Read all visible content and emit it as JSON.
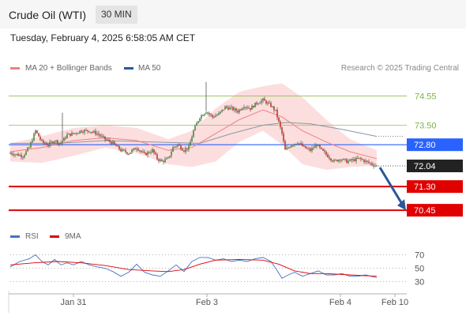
{
  "header": {
    "instrument": "Crude Oil (WTI)",
    "timeframe": "30 MIN"
  },
  "timestamp": "Tuesday, February 4, 2025 6:58:05 AM CET",
  "legend": {
    "ma20": {
      "label": "MA 20 + Bollinger Bands",
      "color": "#f08080"
    },
    "ma50": {
      "label": "MA 50",
      "color": "#2b5797"
    },
    "rsi": {
      "label": "RSI",
      "color": "#4472c4"
    },
    "ma9": {
      "label": "9MA",
      "color": "#e00000"
    }
  },
  "credit": "Research © 2025 Trading Central",
  "chart_data": {
    "type": "candlestick",
    "x_ticks": [
      "Jan 31",
      "Feb 3",
      "Feb 4",
      "Feb 10"
    ],
    "price_ylim": [
      70.0,
      75.3
    ],
    "levels": [
      {
        "value": 74.55,
        "label": "74.55",
        "color": "#8bc34a",
        "style": "line"
      },
      {
        "value": 73.5,
        "label": "73.50",
        "color": "#8bc34a",
        "style": "line"
      },
      {
        "value": 72.8,
        "label": "72.80",
        "color": "#2962ff",
        "style": "line"
      },
      {
        "value": 71.3,
        "label": "71.30",
        "color": "#e00000",
        "style": "line"
      },
      {
        "value": 70.45,
        "label": "70.45",
        "color": "#e00000",
        "style": "line"
      }
    ],
    "current_price": {
      "value": 72.04,
      "label": "72.04",
      "color": "#222222"
    },
    "projection": {
      "from": 72.04,
      "to": 70.45,
      "color": "#2b5797"
    },
    "anchors": [
      [
        0,
        72.5
      ],
      [
        4,
        72.45
      ],
      [
        8,
        72.4
      ],
      [
        12,
        72.7
      ],
      [
        16,
        73.3
      ],
      [
        20,
        72.9
      ],
      [
        24,
        72.8
      ],
      [
        28,
        72.95
      ],
      [
        32,
        72.85
      ],
      [
        36,
        73.15
      ],
      [
        40,
        73.2
      ],
      [
        45,
        73.3
      ],
      [
        50,
        73.3
      ],
      [
        55,
        73.2
      ],
      [
        60,
        73.0
      ],
      [
        65,
        72.85
      ],
      [
        70,
        72.6
      ],
      [
        75,
        72.5
      ],
      [
        80,
        72.7
      ],
      [
        85,
        72.45
      ],
      [
        90,
        72.6
      ],
      [
        93,
        72.3
      ],
      [
        96,
        72.2
      ],
      [
        100,
        72.3
      ],
      [
        103,
        72.7
      ],
      [
        106,
        72.8
      ],
      [
        110,
        72.6
      ],
      [
        113,
        72.7
      ],
      [
        116,
        73.3
      ],
      [
        120,
        73.8
      ],
      [
        124,
        74.0
      ],
      [
        128,
        73.8
      ],
      [
        132,
        73.9
      ],
      [
        136,
        74.15
      ],
      [
        140,
        74.1
      ],
      [
        144,
        74.0
      ],
      [
        148,
        74.2
      ],
      [
        152,
        74.1
      ],
      [
        156,
        74.3
      ],
      [
        160,
        74.4
      ],
      [
        165,
        74.2
      ],
      [
        168,
        74.0
      ],
      [
        170,
        73.6
      ],
      [
        172,
        73.2
      ],
      [
        174,
        72.6
      ],
      [
        178,
        72.8
      ],
      [
        182,
        72.9
      ],
      [
        186,
        72.7
      ],
      [
        190,
        72.6
      ],
      [
        194,
        72.8
      ],
      [
        197,
        72.6
      ],
      [
        201,
        72.4
      ],
      [
        205,
        72.2
      ],
      [
        209,
        72.3
      ],
      [
        213,
        72.2
      ],
      [
        217,
        72.25
      ],
      [
        221,
        72.3
      ],
      [
        225,
        72.2
      ],
      [
        229,
        72.1
      ],
      [
        232,
        72.04
      ]
    ],
    "ma20": [
      [
        0,
        72.55
      ],
      [
        20,
        72.7
      ],
      [
        40,
        72.95
      ],
      [
        60,
        73.05
      ],
      [
        80,
        72.95
      ],
      [
        100,
        72.6
      ],
      [
        115,
        72.7
      ],
      [
        130,
        73.2
      ],
      [
        145,
        73.7
      ],
      [
        160,
        74.05
      ],
      [
        172,
        73.8
      ],
      [
        185,
        73.3
      ],
      [
        200,
        72.9
      ],
      [
        215,
        72.55
      ],
      [
        232,
        72.3
      ]
    ],
    "bollinger_upper": [
      [
        0,
        72.85
      ],
      [
        20,
        73.1
      ],
      [
        40,
        73.4
      ],
      [
        60,
        73.5
      ],
      [
        80,
        73.4
      ],
      [
        100,
        73.0
      ],
      [
        115,
        73.3
      ],
      [
        130,
        74.1
      ],
      [
        145,
        74.7
      ],
      [
        160,
        74.9
      ],
      [
        172,
        75.0
      ],
      [
        185,
        74.5
      ],
      [
        200,
        73.7
      ],
      [
        215,
        73.0
      ],
      [
        232,
        72.6
      ]
    ],
    "bollinger_lower": [
      [
        0,
        72.2
      ],
      [
        20,
        72.15
      ],
      [
        40,
        72.4
      ],
      [
        60,
        72.7
      ],
      [
        80,
        72.5
      ],
      [
        100,
        72.1
      ],
      [
        115,
        72.0
      ],
      [
        130,
        72.2
      ],
      [
        145,
        72.9
      ],
      [
        160,
        73.3
      ],
      [
        172,
        72.8
      ],
      [
        185,
        72.1
      ],
      [
        200,
        71.9
      ],
      [
        215,
        72.0
      ],
      [
        232,
        72.05
      ]
    ],
    "ma50": [
      [
        0,
        72.85
      ],
      [
        30,
        72.85
      ],
      [
        60,
        72.95
      ],
      [
        90,
        72.9
      ],
      [
        120,
        72.85
      ],
      [
        140,
        73.2
      ],
      [
        160,
        73.5
      ],
      [
        175,
        73.6
      ],
      [
        190,
        73.55
      ],
      [
        210,
        73.35
      ],
      [
        232,
        73.1
      ]
    ],
    "rsi": {
      "ticks": [
        70,
        50,
        30
      ],
      "ylim": [
        20,
        80
      ],
      "rsi_line": [
        [
          0,
          52
        ],
        [
          6,
          60
        ],
        [
          12,
          64
        ],
        [
          16,
          70
        ],
        [
          20,
          60
        ],
        [
          24,
          55
        ],
        [
          28,
          63
        ],
        [
          32,
          55
        ],
        [
          36,
          58
        ],
        [
          40,
          55
        ],
        [
          45,
          60
        ],
        [
          50,
          55
        ],
        [
          55,
          52
        ],
        [
          60,
          50
        ],
        [
          65,
          45
        ],
        [
          70,
          38
        ],
        [
          75,
          44
        ],
        [
          80,
          56
        ],
        [
          85,
          44
        ],
        [
          90,
          40
        ],
        [
          95,
          38
        ],
        [
          100,
          46
        ],
        [
          105,
          55
        ],
        [
          110,
          45
        ],
        [
          115,
          60
        ],
        [
          120,
          66
        ],
        [
          125,
          66
        ],
        [
          130,
          62
        ],
        [
          135,
          64
        ],
        [
          140,
          60
        ],
        [
          145,
          62
        ],
        [
          150,
          60
        ],
        [
          155,
          64
        ],
        [
          160,
          66
        ],
        [
          165,
          60
        ],
        [
          168,
          50
        ],
        [
          172,
          35
        ],
        [
          176,
          40
        ],
        [
          180,
          44
        ],
        [
          185,
          38
        ],
        [
          190,
          42
        ],
        [
          195,
          46
        ],
        [
          200,
          40
        ],
        [
          205,
          40
        ],
        [
          210,
          42
        ],
        [
          215,
          38
        ],
        [
          220,
          38
        ],
        [
          225,
          40
        ],
        [
          232,
          36
        ]
      ],
      "ma9_line": [
        [
          0,
          55
        ],
        [
          15,
          58
        ],
        [
          30,
          60
        ],
        [
          45,
          58
        ],
        [
          60,
          54
        ],
        [
          75,
          48
        ],
        [
          90,
          46
        ],
        [
          100,
          45
        ],
        [
          110,
          48
        ],
        [
          120,
          56
        ],
        [
          130,
          62
        ],
        [
          145,
          63
        ],
        [
          160,
          62
        ],
        [
          170,
          56
        ],
        [
          180,
          46
        ],
        [
          190,
          42
        ],
        [
          200,
          42
        ],
        [
          215,
          40
        ],
        [
          232,
          38
        ]
      ]
    }
  }
}
